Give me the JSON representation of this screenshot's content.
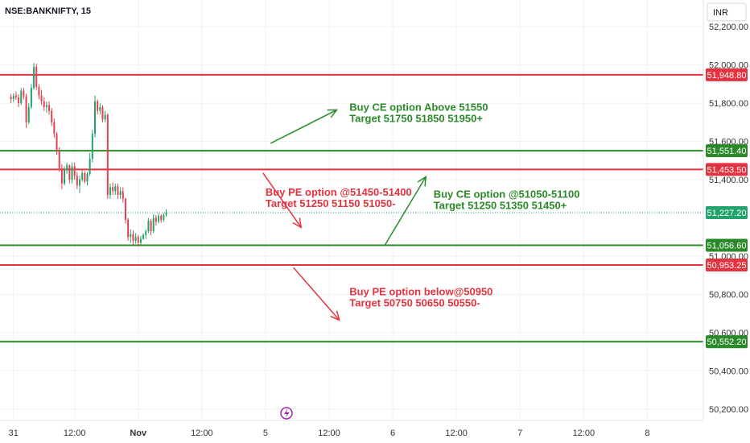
{
  "header": {
    "symbol": "NSE:BANKNIFTY, 15",
    "currency": "INR"
  },
  "colors": {
    "green": "#2a8a2a",
    "red": "#e5323f",
    "candle_up": "#22a36b",
    "candle_down": "#e5404b",
    "price_line": "#22a36b",
    "axis_text": "#333333",
    "grid": "#f0f1f4"
  },
  "chart_data": {
    "type": "candlestick",
    "y_axis_labels": [
      "52,200.00",
      "52,000.00",
      "51,800.00",
      "51,600.00",
      "51,400.00",
      "51,000.00",
      "50,800.00",
      "50,600.00",
      "50,400.00",
      "50,200.00"
    ],
    "y_axis_values": [
      52200,
      52000,
      51800,
      51600,
      51400,
      51000,
      50800,
      50600,
      50400,
      50200
    ],
    "x_axis_labels": [
      {
        "label": "31",
        "t": 1
      },
      {
        "label": "12:00",
        "t": 25
      },
      {
        "label": "Nov",
        "t": 50
      },
      {
        "label": "12:00",
        "t": 75
      },
      {
        "label": "5",
        "t": 100
      },
      {
        "label": "12:00",
        "t": 125
      },
      {
        "label": "6",
        "t": 150
      },
      {
        "label": "12:00",
        "t": 175
      },
      {
        "label": "7",
        "t": 200
      },
      {
        "label": "12:00",
        "t": 225
      },
      {
        "label": "8",
        "t": 250
      }
    ],
    "ylim": [
      50140,
      52340
    ],
    "xlim": [
      -4.3,
      272
    ],
    "levels": [
      {
        "value": 51948.8,
        "label": "51,948.80",
        "color": "red"
      },
      {
        "value": 51551.4,
        "label": "51,551.40",
        "color": "green"
      },
      {
        "value": 51453.5,
        "label": "51,453.50",
        "color": "red"
      },
      {
        "value": 51056.6,
        "label": "51,056.60",
        "color": "green"
      },
      {
        "value": 50953.25,
        "label": "50,953.25",
        "color": "red"
      },
      {
        "value": 50552.2,
        "label": "50,552.20",
        "color": "green"
      }
    ],
    "last_price": {
      "value": 51227.2,
      "label": "51,227.20"
    },
    "candles": [
      [
        51832,
        51848,
        51800,
        51822
      ],
      [
        51822,
        51852,
        51806,
        51840
      ],
      [
        51840,
        51862,
        51818,
        51830
      ],
      [
        51830,
        51846,
        51780,
        51800
      ],
      [
        51800,
        51880,
        51790,
        51865
      ],
      [
        51865,
        51880,
        51820,
        51836
      ],
      [
        51836,
        51850,
        51670,
        51700
      ],
      [
        51700,
        51800,
        51690,
        51780
      ],
      [
        51780,
        51900,
        51770,
        51880
      ],
      [
        51880,
        52010,
        51870,
        51990
      ],
      [
        51990,
        52006,
        51870,
        51885
      ],
      [
        51885,
        51900,
        51820,
        51840
      ],
      [
        51840,
        51870,
        51790,
        51810
      ],
      [
        51810,
        51830,
        51760,
        51780
      ],
      [
        51780,
        51808,
        51750,
        51790
      ],
      [
        51790,
        51810,
        51740,
        51760
      ],
      [
        51760,
        51775,
        51680,
        51700
      ],
      [
        51700,
        51720,
        51620,
        51640
      ],
      [
        51640,
        51650,
        51530,
        51550
      ],
      [
        51550,
        51570,
        51440,
        51460
      ],
      [
        51460,
        51480,
        51350,
        51380
      ],
      [
        51380,
        51470,
        51370,
        51450
      ],
      [
        51450,
        51490,
        51430,
        51475
      ],
      [
        51475,
        51480,
        51380,
        51400
      ],
      [
        51400,
        51490,
        51380,
        51470
      ],
      [
        51470,
        51490,
        51400,
        51420
      ],
      [
        51420,
        51440,
        51350,
        51370
      ],
      [
        51370,
        51420,
        51330,
        51400
      ],
      [
        51400,
        51450,
        51390,
        51435
      ],
      [
        51435,
        51445,
        51380,
        51390
      ],
      [
        51390,
        51440,
        51370,
        51430
      ],
      [
        51430,
        51540,
        51420,
        51510
      ],
      [
        51510,
        51660,
        51490,
        51640
      ],
      [
        51640,
        51840,
        51620,
        51810
      ],
      [
        51810,
        51820,
        51740,
        51760
      ],
      [
        51760,
        51800,
        51740,
        51780
      ],
      [
        51780,
        51790,
        51700,
        51715
      ],
      [
        51715,
        51760,
        51700,
        51740
      ],
      [
        51740,
        51745,
        51300,
        51320
      ],
      [
        51320,
        51380,
        51300,
        51360
      ],
      [
        51360,
        51385,
        51320,
        51340
      ],
      [
        51340,
        51380,
        51320,
        51365
      ],
      [
        51365,
        51380,
        51300,
        51320
      ],
      [
        51320,
        51360,
        51300,
        51340
      ],
      [
        51340,
        51360,
        51280,
        51300
      ],
      [
        51300,
        51305,
        51170,
        51190
      ],
      [
        51190,
        51200,
        51080,
        51100
      ],
      [
        51100,
        51140,
        51070,
        51115
      ],
      [
        51115,
        51135,
        51060,
        51080
      ],
      [
        51080,
        51120,
        51065,
        51100
      ],
      [
        51100,
        51110,
        51050,
        51070
      ],
      [
        51070,
        51105,
        51060,
        51090
      ],
      [
        51090,
        51120,
        51085,
        51110
      ],
      [
        51110,
        51140,
        51090,
        51130
      ],
      [
        51130,
        51200,
        51120,
        51185
      ],
      [
        51185,
        51195,
        51110,
        51130
      ],
      [
        51130,
        51220,
        51120,
        51200
      ],
      [
        51200,
        51215,
        51160,
        51180
      ],
      [
        51180,
        51225,
        51170,
        51210
      ],
      [
        51210,
        51220,
        51175,
        51190
      ],
      [
        51190,
        51225,
        51180,
        51215
      ],
      [
        51215,
        51245,
        51205,
        51227
      ]
    ],
    "annotations": [
      {
        "lines": [
          "Buy CE option Above 51550",
          "Target 51750 51850 51950+"
        ],
        "color": "green",
        "t": 133,
        "y": 51760
      },
      {
        "lines": [
          "Buy PE option @51450-51400",
          "Target 51250 51150 51050-"
        ],
        "color": "red",
        "t": 100,
        "y": 51315
      },
      {
        "lines": [
          "Buy CE option @51050-51100",
          "Target 51250 51350 51450+"
        ],
        "color": "green",
        "t": 166,
        "y": 51305
      },
      {
        "lines": [
          "Buy PE option below@50950",
          "Target 50750 50650 50550-"
        ],
        "color": "red",
        "t": 133,
        "y": 50795
      }
    ],
    "arrows": [
      {
        "from": [
          102,
          51590
        ],
        "to": [
          128,
          51765
        ],
        "color": "green"
      },
      {
        "from": [
          99,
          51435
        ],
        "to": [
          114,
          51150
        ],
        "color": "red"
      },
      {
        "from": [
          147,
          51060
        ],
        "to": [
          163,
          51415
        ],
        "color": "green"
      },
      {
        "from": [
          111,
          50940
        ],
        "to": [
          129,
          50665
        ],
        "color": "red"
      }
    ]
  }
}
